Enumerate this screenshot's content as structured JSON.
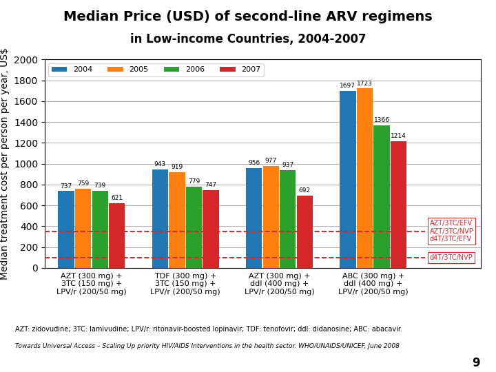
{
  "chart_data": {
    "type": "bar",
    "title": "Median Price (USD) of second-line ARV regimens",
    "subtitle": "in Low-income Countries, 2004-2007",
    "categories": [
      "AZT (300 mg) +\n3TC (150 mg) +\nLPV/r (200/50 mg)",
      "TDF (300 mg) +\n3TC (150 mg) +\nLPV/r (200/50 mg)",
      "AZT (300 mg) +\nddI (400 mg) +\nLPV/r (200/50 mg)",
      "ABC (300 mg) +\nddI (400 mg) +\nLPV/r (200/50 mg)"
    ],
    "series": [
      {
        "name": "2004",
        "values": [
          737,
          943,
          956,
          1697
        ]
      },
      {
        "name": "2005",
        "values": [
          759,
          919,
          977,
          1723
        ]
      },
      {
        "name": "2006",
        "values": [
          739,
          779,
          937,
          1366
        ]
      },
      {
        "name": "2007",
        "values": [
          621,
          747,
          692,
          1214
        ]
      }
    ],
    "y_label": "Median treatment cost per person per year, US$",
    "ylim": [
      0,
      2000
    ],
    "yticks": [
      0,
      200,
      400,
      600,
      800,
      1000,
      1200,
      1400,
      1600,
      1800,
      2000
    ],
    "grid": true,
    "legend": "upper left",
    "data_labels": true,
    "reference_lines": [
      {
        "value": 350,
        "label": "AZT/3TC/EFV\nAZT/3TC/NVP\nd4T/3TC/EFV"
      },
      {
        "value": 100,
        "label": "d4T/3TC/NVP"
      }
    ],
    "footnote": "AZT: zidovudine; 3TC: lamivudine; LPV/r: ritonavir-boosted lopinavir; TDF: tenofovir; ddI: didanosine; ABC: abacavir.",
    "source": "Towards Universal Access – Scaling Up priority HIV/AIDS Interventions in the health sector. WHO/UNAIDS/UNICEF, June 2008",
    "page_number": "9"
  }
}
